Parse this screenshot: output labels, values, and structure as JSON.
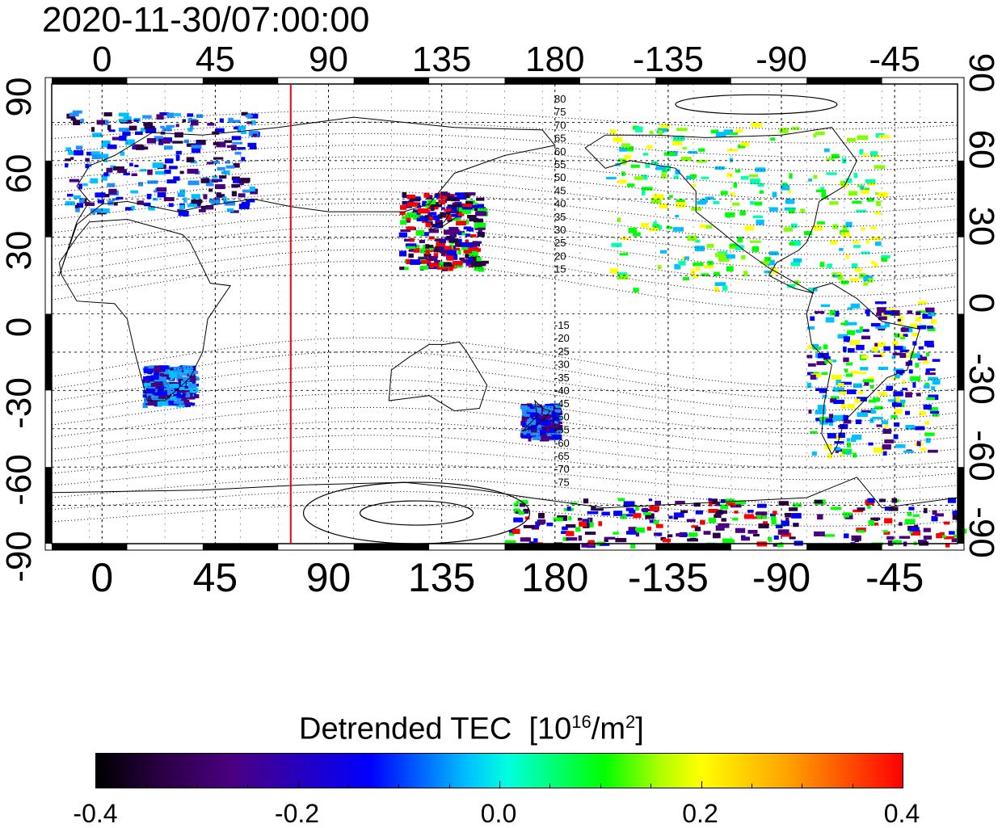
{
  "timestamp": "2020-11-30/07:00:00",
  "map": {
    "lon_ticks": [
      {
        "lon": 0,
        "label": "0"
      },
      {
        "lon": 45,
        "label": "45"
      },
      {
        "lon": 90,
        "label": "90"
      },
      {
        "lon": 135,
        "label": "135"
      },
      {
        "lon": 180,
        "label": "180"
      },
      {
        "lon": 225,
        "label": "-135"
      },
      {
        "lon": 270,
        "label": "-90"
      },
      {
        "lon": 315,
        "label": "-45"
      }
    ],
    "lat_ticks": [
      {
        "lat": 90,
        "label": "90"
      },
      {
        "lat": 60,
        "label": "60"
      },
      {
        "lat": 30,
        "label": "30"
      },
      {
        "lat": 0,
        "label": "0"
      },
      {
        "lat": -30,
        "label": "-30"
      },
      {
        "lat": -60,
        "label": "-60"
      },
      {
        "lat": -90,
        "label": "-90"
      }
    ],
    "lon_range": [
      -20,
      340
    ],
    "lat_range": [
      -90,
      90
    ],
    "terminator_lon": 75,
    "terminator_color": "#ff0000",
    "contour_labels_north": [
      "80",
      "75",
      "70",
      "65",
      "60",
      "55",
      "50",
      "45",
      "40",
      "35",
      "30",
      "25",
      "20",
      "15"
    ],
    "contour_labels_south": [
      "-15",
      "-20",
      "-25",
      "-30",
      "-35",
      "-40",
      "-45",
      "-50",
      "-55",
      "-60",
      "-65",
      "-70",
      "-75"
    ]
  },
  "colorbar": {
    "title": "Detrended TEC",
    "unit_base": "[10",
    "unit_exp": "16",
    "unit_mid": "/m",
    "unit_exp2": "2",
    "unit_end": "]",
    "range": [
      -0.4,
      0.4
    ],
    "ticks": [
      {
        "value": -0.4,
        "label": "-0.4"
      },
      {
        "value": -0.2,
        "label": "-0.2"
      },
      {
        "value": 0.0,
        "label": "0.0"
      },
      {
        "value": 0.2,
        "label": "0.2"
      },
      {
        "value": 0.4,
        "label": "0.4"
      }
    ]
  },
  "data_regions": [
    {
      "name": "europe",
      "lon": [
        -15,
        60
      ],
      "lat": [
        40,
        80
      ],
      "palette": [
        "#2a0044",
        "#4b0082",
        "#0000ff",
        "#1e90ff",
        "#00c0ff"
      ]
    },
    {
      "name": "japan",
      "lon": [
        118,
        150
      ],
      "lat": [
        18,
        48
      ],
      "palette": [
        "#2a0044",
        "#4b0082",
        "#0000ff",
        "#00ff00",
        "#ff0000"
      ]
    },
    {
      "name": "north-america",
      "lon": [
        200,
        310
      ],
      "lat": [
        10,
        75
      ],
      "palette": [
        "#00ff00",
        "#00ffb0",
        "#7fff00",
        "#00c0ff",
        "#ffff00"
      ]
    },
    {
      "name": "south-america",
      "lon": [
        280,
        330
      ],
      "lat": [
        -55,
        5
      ],
      "palette": [
        "#0000ff",
        "#4b0082",
        "#00c0ff",
        "#00ff00",
        "#ffff00"
      ]
    },
    {
      "name": "southern-africa",
      "lon": [
        16,
        35
      ],
      "lat": [
        -35,
        -20
      ],
      "palette": [
        "#0000ff",
        "#00c0ff",
        "#1e90ff",
        "#4b0082"
      ]
    },
    {
      "name": "new-zealand",
      "lon": [
        166,
        180
      ],
      "lat": [
        -48,
        -35
      ],
      "palette": [
        "#0000ff",
        "#4b0082",
        "#1e90ff"
      ]
    },
    {
      "name": "antarctica",
      "lon": [
        160,
        340
      ],
      "lat": [
        -90,
        -72
      ],
      "palette": [
        "#2a0044",
        "#ff0000",
        "#0000ff",
        "#00ff00",
        "#4b0082"
      ]
    }
  ]
}
